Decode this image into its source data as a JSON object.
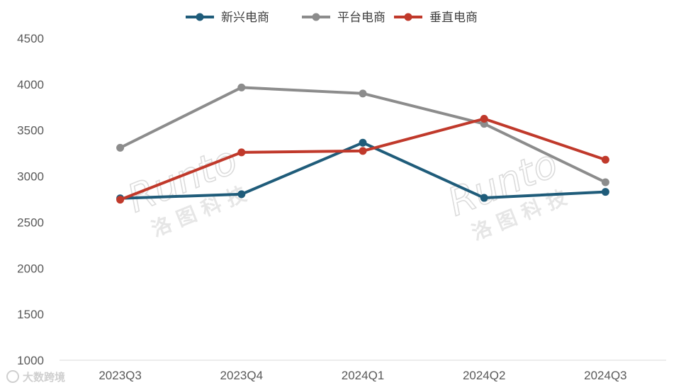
{
  "chart_data": {
    "type": "line",
    "categories": [
      "2023Q3",
      "2023Q4",
      "2024Q1",
      "2024Q2",
      "2024Q3"
    ],
    "series": [
      {
        "name": "新兴电商",
        "color": "#1f5c7a",
        "values": [
          2760,
          2805,
          3365,
          2765,
          2830
        ]
      },
      {
        "name": "平台电商",
        "color": "#8c8c8c",
        "values": [
          3310,
          3965,
          3900,
          3570,
          2935
        ]
      },
      {
        "name": "垂直电商",
        "color": "#c0392b",
        "values": [
          2745,
          3260,
          3275,
          3625,
          3180
        ]
      }
    ],
    "ylim": [
      1000,
      4500
    ],
    "yticks": [
      1000,
      1500,
      2000,
      2500,
      3000,
      3500,
      4000,
      4500
    ],
    "grid": false,
    "legend_position": "top"
  },
  "watermarks": {
    "latin": "Runto",
    "cn": "洛 图 科 技",
    "corner": "大数跨境"
  }
}
